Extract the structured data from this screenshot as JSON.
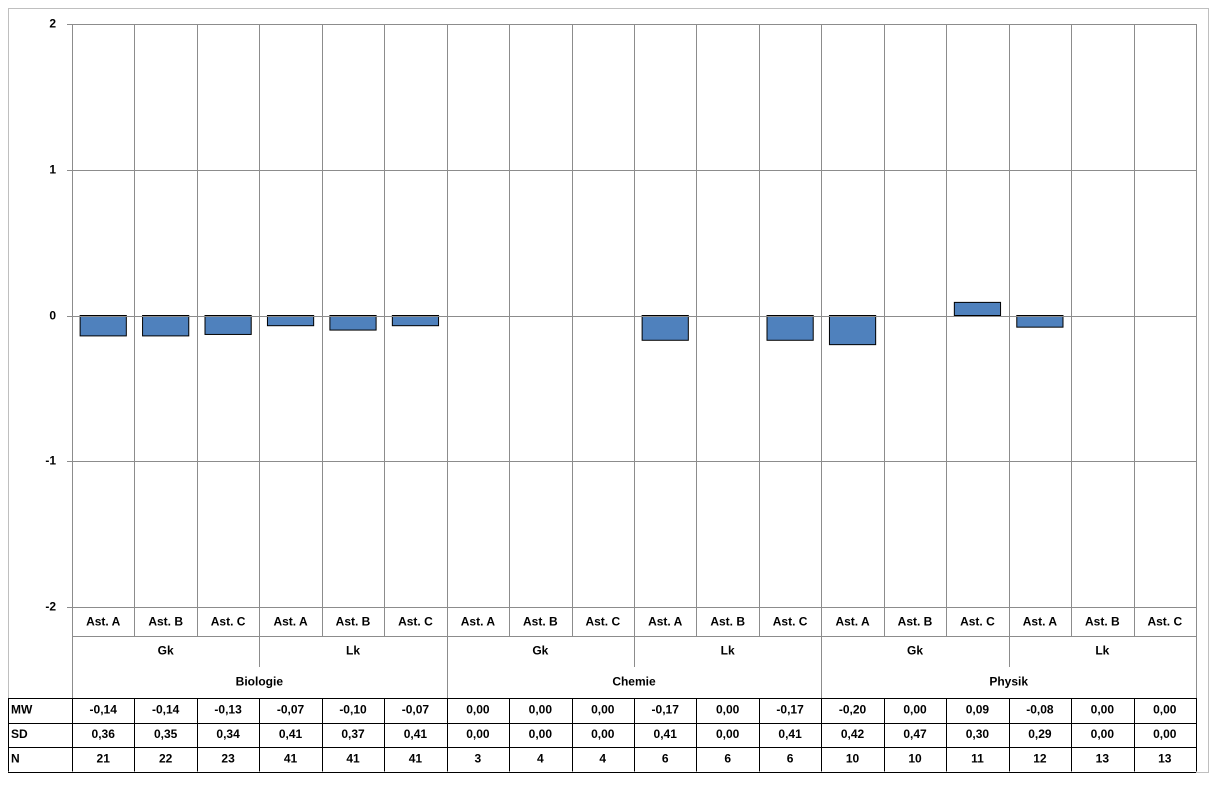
{
  "chart_data": {
    "type": "bar",
    "title": "",
    "xlabel": "",
    "ylabel": "",
    "ylim": [
      -2,
      2
    ],
    "yticks": [
      2,
      1,
      0,
      -1,
      -2
    ],
    "grid": true,
    "legend": "none",
    "categories": [
      "Ast. A",
      "Ast. B",
      "Ast. C",
      "Ast. A",
      "Ast. B",
      "Ast. C",
      "Ast. A",
      "Ast. B",
      "Ast. C",
      "Ast. A",
      "Ast. B",
      "Ast. C",
      "Ast. A",
      "Ast. B",
      "Ast. C",
      "Ast. A",
      "Ast. B",
      "Ast. C"
    ],
    "group_level1": [
      {
        "label": "Gk",
        "span": 3
      },
      {
        "label": "Lk",
        "span": 3
      },
      {
        "label": "Gk",
        "span": 3
      },
      {
        "label": "Lk",
        "span": 3
      },
      {
        "label": "Gk",
        "span": 3
      },
      {
        "label": "Lk",
        "span": 3
      }
    ],
    "group_level2": [
      {
        "label": "Biologie",
        "span": 6
      },
      {
        "label": "Chemie",
        "span": 6
      },
      {
        "label": "Physik",
        "span": 6
      }
    ],
    "values": [
      -0.14,
      -0.14,
      -0.13,
      -0.07,
      -0.1,
      -0.07,
      0.0,
      0.0,
      0.0,
      -0.17,
      0.0,
      -0.17,
      -0.2,
      0.0,
      0.09,
      -0.08,
      0.0,
      0.0
    ],
    "bar_color": "#4F81BD",
    "table": {
      "rows": [
        {
          "label": "MW",
          "values": [
            "-0,14",
            "-0,14",
            "-0,13",
            "-0,07",
            "-0,10",
            "-0,07",
            "0,00",
            "0,00",
            "0,00",
            "-0,17",
            "0,00",
            "-0,17",
            "-0,20",
            "0,00",
            "0,09",
            "-0,08",
            "0,00",
            "0,00"
          ]
        },
        {
          "label": "SD",
          "values": [
            "0,36",
            "0,35",
            "0,34",
            "0,41",
            "0,37",
            "0,41",
            "0,00",
            "0,00",
            "0,00",
            "0,41",
            "0,00",
            "0,41",
            "0,42",
            "0,47",
            "0,30",
            "0,29",
            "0,00",
            "0,00"
          ]
        },
        {
          "label": "N",
          "values": [
            "21",
            "22",
            "23",
            "41",
            "41",
            "41",
            "3",
            "4",
            "4",
            "6",
            "6",
            "6",
            "10",
            "10",
            "11",
            "12",
            "13",
            "13"
          ]
        }
      ]
    }
  }
}
